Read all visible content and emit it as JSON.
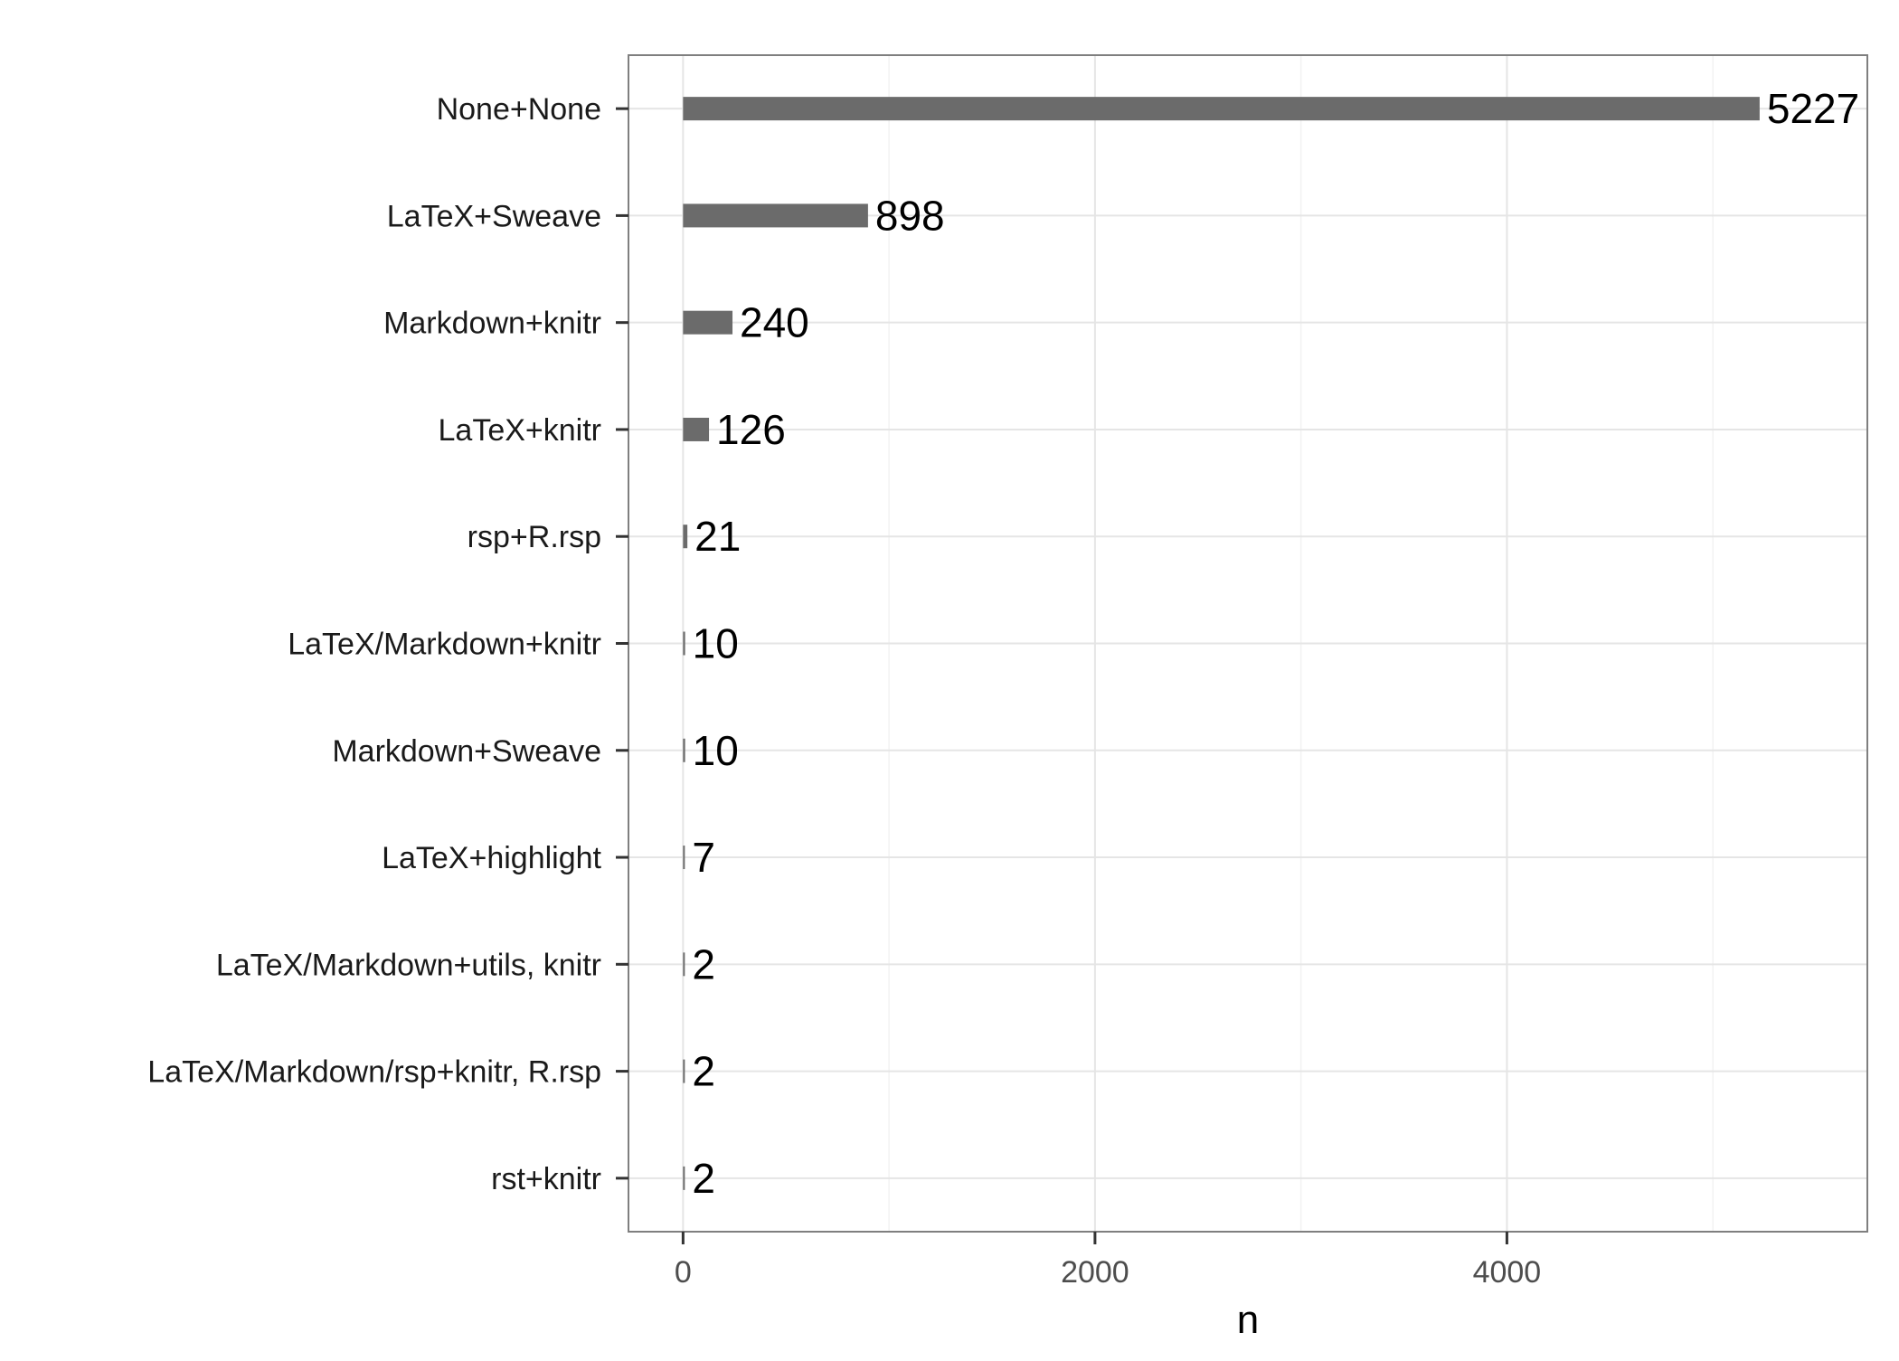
{
  "chart_data": {
    "type": "bar",
    "orientation": "horizontal",
    "categories": [
      "None+None",
      "LaTeX+Sweave",
      "Markdown+knitr",
      "LaTeX+knitr",
      "rsp+R.rsp",
      "LaTeX/Markdown+knitr",
      "Markdown+Sweave",
      "LaTeX+highlight",
      "LaTeX/Markdown+utils, knitr",
      "LaTeX/Markdown/rsp+knitr, R.rsp",
      "rst+knitr"
    ],
    "values": [
      5227,
      898,
      240,
      126,
      21,
      10,
      10,
      7,
      2,
      2,
      2
    ],
    "value_labels": [
      "5227",
      "898",
      "240",
      "126",
      "21",
      "10",
      "10",
      "7",
      "2",
      "2",
      "2"
    ],
    "xlabel": "n",
    "ylabel": "",
    "xlim": [
      -265,
      5750
    ],
    "xticks": [
      0,
      2000,
      4000
    ],
    "xtick_labels": [
      "0",
      "2000",
      "4000"
    ],
    "grid": true,
    "legend": "none"
  },
  "colors": {
    "bar": "#6b6b6b",
    "grid": "#e5e5e5",
    "panel_border": "#7f7f7f",
    "background": "#ffffff"
  }
}
